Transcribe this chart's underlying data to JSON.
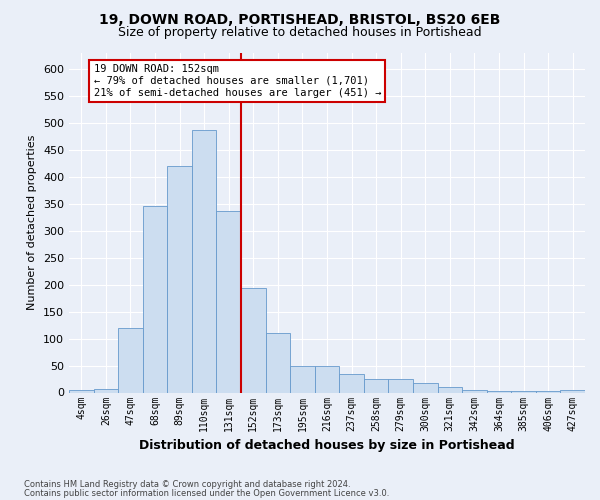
{
  "title1": "19, DOWN ROAD, PORTISHEAD, BRISTOL, BS20 6EB",
  "title2": "Size of property relative to detached houses in Portishead",
  "xlabel": "Distribution of detached houses by size in Portishead",
  "ylabel": "Number of detached properties",
  "categories": [
    "4sqm",
    "26sqm",
    "47sqm",
    "68sqm",
    "89sqm",
    "110sqm",
    "131sqm",
    "152sqm",
    "173sqm",
    "195sqm",
    "216sqm",
    "237sqm",
    "258sqm",
    "279sqm",
    "300sqm",
    "321sqm",
    "342sqm",
    "364sqm",
    "385sqm",
    "406sqm",
    "427sqm"
  ],
  "bar_values": [
    4,
    7,
    120,
    345,
    420,
    487,
    337,
    193,
    111,
    50,
    50,
    34,
    25,
    25,
    17,
    10,
    5,
    3,
    3,
    2,
    5
  ],
  "bar_color": "#ccddf0",
  "bar_edge_color": "#6699cc",
  "vline_color": "#cc0000",
  "annotation_title": "19 DOWN ROAD: 152sqm",
  "annotation_line1": "← 79% of detached houses are smaller (1,701)",
  "annotation_line2": "21% of semi-detached houses are larger (451) →",
  "annotation_box_color": "#ffffff",
  "annotation_box_edge": "#cc0000",
  "ylim": [
    0,
    630
  ],
  "yticks": [
    0,
    50,
    100,
    150,
    200,
    250,
    300,
    350,
    400,
    450,
    500,
    550,
    600
  ],
  "footer1": "Contains HM Land Registry data © Crown copyright and database right 2024.",
  "footer2": "Contains public sector information licensed under the Open Government Licence v3.0.",
  "bg_color": "#eaeff8",
  "plot_bg_color": "#eaeff8",
  "title_fontsize": 10,
  "subtitle_fontsize": 9
}
